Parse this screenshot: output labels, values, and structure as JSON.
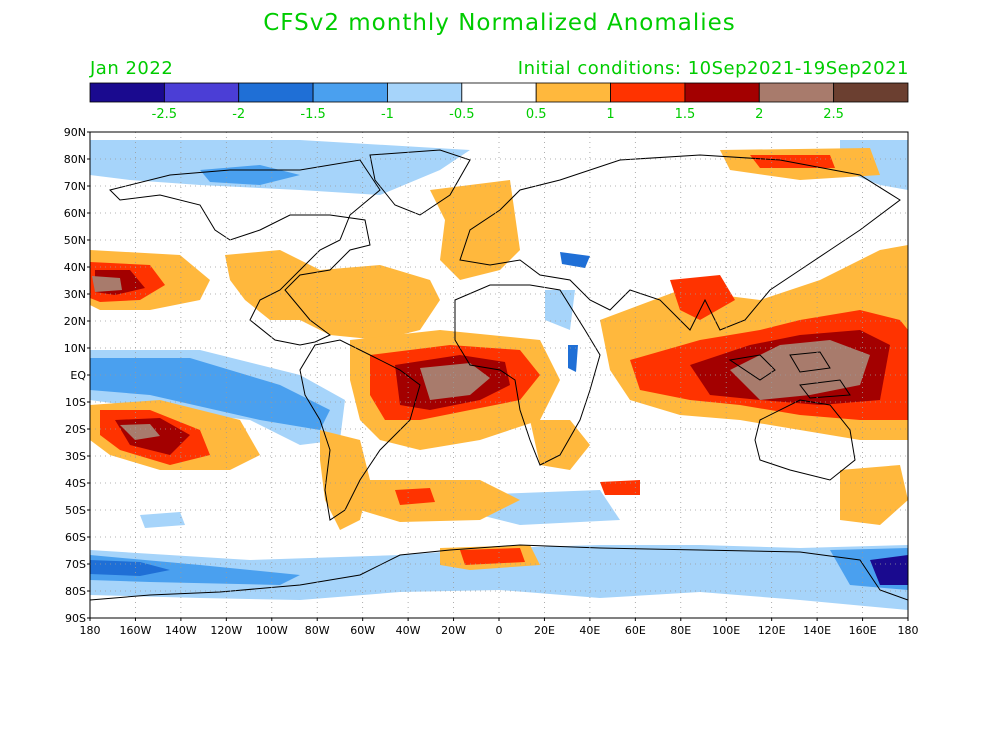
{
  "title": "CFSv2 monthly Normalized Anomalies",
  "month": "Jan 2022",
  "initial_conditions": "Initial conditions: 10Sep2021-19Sep2021",
  "colors": {
    "title_text": "#00cc00",
    "scale_labels": "#00cc00",
    "bins": [
      "#1a0a8f",
      "#4b3ed6",
      "#1f6fd6",
      "#4aa0ef",
      "#a6d4fa",
      "#ffffff",
      "#ffb83d",
      "#ff3300",
      "#a30000",
      "#a87b6c",
      "#6b3f30"
    ]
  },
  "scale_labels": [
    "-2.5",
    "-2",
    "-1.5",
    "-1",
    "-0.5",
    "0.5",
    "1",
    "1.5",
    "2",
    "2.5"
  ],
  "lat_labels": [
    "90N",
    "80N",
    "70N",
    "60N",
    "50N",
    "40N",
    "30N",
    "20N",
    "10N",
    "EQ",
    "10S",
    "20S",
    "30S",
    "40S",
    "50S",
    "60S",
    "70S",
    "80S",
    "90S"
  ],
  "lon_labels": [
    "180",
    "160W",
    "140W",
    "120W",
    "100W",
    "80W",
    "60W",
    "40W",
    "20W",
    "0",
    "20E",
    "40E",
    "60E",
    "80E",
    "100E",
    "120E",
    "140E",
    "160E",
    "180"
  ]
}
